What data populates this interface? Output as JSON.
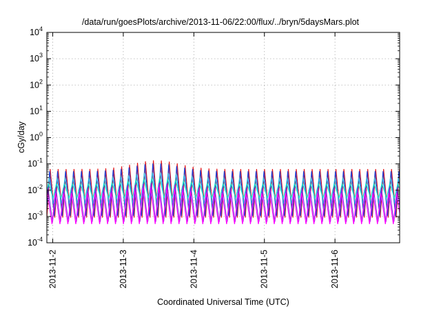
{
  "chart_data": {
    "type": "line",
    "title": "/data/run/goesPlots/archive/2013-11-06/22:00/flux/../bryn/5daysMars.plot",
    "ylabel": "cGy/day",
    "xlabel": "Coordinated Universal Time (UTC)",
    "yscale": "log",
    "ylim": [
      0.0001,
      10000
    ],
    "y_ticks": [
      {
        "value": 0.0001,
        "base": "10",
        "exp": "-4"
      },
      {
        "value": 0.001,
        "base": "10",
        "exp": "-3"
      },
      {
        "value": 0.01,
        "base": "10",
        "exp": "-2"
      },
      {
        "value": 0.1,
        "base": "10",
        "exp": "-1"
      },
      {
        "value": 1,
        "base": "10",
        "exp": "0"
      },
      {
        "value": 10,
        "base": "10",
        "exp": "1"
      },
      {
        "value": 100,
        "base": "10",
        "exp": "2"
      },
      {
        "value": 1000,
        "base": "10",
        "exp": "3"
      },
      {
        "value": 10000,
        "base": "10",
        "exp": "4"
      }
    ],
    "xlim": [
      "2013-11-01T22:00",
      "2013-11-06T22:00"
    ],
    "x_ticks": [
      {
        "value": "2013-11-02T00:00",
        "label": "2013-11-2"
      },
      {
        "value": "2013-11-03T00:00",
        "label": "2013-11-3"
      },
      {
        "value": "2013-11-04T00:00",
        "label": "2013-11-4"
      },
      {
        "value": "2013-11-05T00:00",
        "label": "2013-11-5"
      },
      {
        "value": "2013-11-06T00:00",
        "label": "2013-11-6"
      }
    ],
    "grid": true,
    "legend": "none",
    "cycle_hours": 2.7,
    "series": [
      {
        "color": "#e41a1c",
        "peak": 0.065,
        "trough": 0.0009,
        "peak_event": 0.14
      },
      {
        "color": "#1f3fd6",
        "peak": 0.055,
        "trough": 0.001,
        "peak_event": 0.11
      },
      {
        "color": "#2fb5e0",
        "peak": 0.03,
        "trough": 0.003,
        "peak_event": 0.05
      },
      {
        "color": "#16e0c8",
        "peak": 0.018,
        "trough": 0.005,
        "peak_event": 0.03
      },
      {
        "color": "#8a2be2",
        "peak": 0.012,
        "trough": 0.0006,
        "peak_event": 0.02
      },
      {
        "color": "#ff00ff",
        "peak": 0.008,
        "trough": 0.0005,
        "peak_event": 0.014
      }
    ]
  }
}
